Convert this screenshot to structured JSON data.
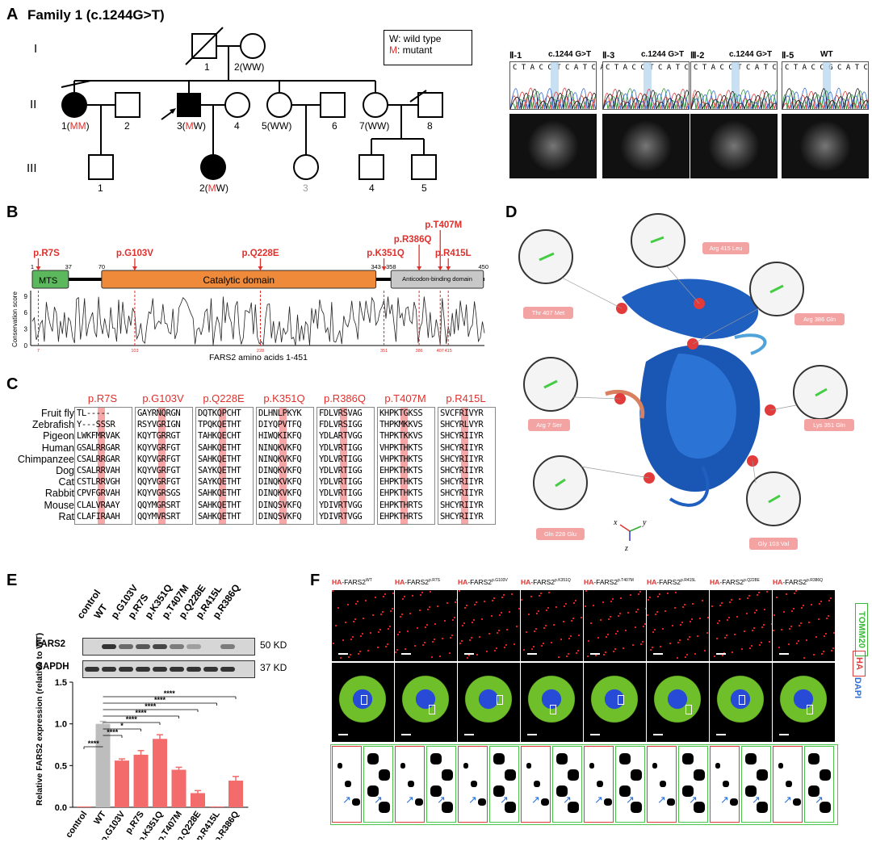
{
  "panelA": {
    "letter": "A",
    "title": "Family 1 (c.1244G>T)",
    "legend_w": "W: wild type",
    "legend_m_prefix": "M",
    "legend_m_suffix": ": mutant",
    "gens": [
      "I",
      "II",
      "III"
    ],
    "labels": {
      "I1": "1",
      "I2": "2(WW)",
      "II1_num": "1(",
      "II1_mm": "MM",
      "II1_close": ")",
      "II2": "2",
      "II3_num": "3(",
      "II3_m": "M",
      "II3_w": "W)",
      "II4": "4",
      "II5": "5(WW)",
      "II6": "6",
      "II7": "7(WW)",
      "II8": "8",
      "III1": "1",
      "III2_num": "2(",
      "III2_m": "M",
      "III2_w": "W)",
      "III3": "3",
      "III4": "4",
      "III5": "5"
    },
    "seq_panels": [
      {
        "id": "Ⅱ-1",
        "label": "c.1244 G>T",
        "seq": "C T A C C T C A T C A"
      },
      {
        "id": "Ⅱ-3",
        "label": "c.1244 G>T",
        "seq": "C T A C C T C A T C A"
      },
      {
        "id": "Ⅲ-2",
        "label": "c.1244 G>T",
        "seq": "C T A C C T C A T C A"
      },
      {
        "id": "Ⅱ-5",
        "label": "WT",
        "seq": "C T A C C G C A T C A"
      }
    ]
  },
  "panelB": {
    "letter": "B",
    "mutations": [
      "p.R7S",
      "p.G103V",
      "p.Q228E",
      "p.K351Q",
      "p.R386Q",
      "p.T407M",
      "p.R415L"
    ],
    "positions": [
      "1",
      "37",
      "70",
      "343",
      "358",
      "450"
    ],
    "domains": {
      "mts": "MTS",
      "catalytic": "Catalytic domain",
      "anticodon": "Anticodon-binding domain"
    },
    "ylabel": "Conservation score",
    "yticks": [
      "9",
      "6",
      "3",
      "0"
    ],
    "xlabel": "FARS2 amino acids 1-451",
    "xticks": [
      "7",
      "103",
      "228",
      "351",
      "386",
      "407",
      "415"
    ]
  },
  "panelC": {
    "letter": "C",
    "species": [
      "Fruit fly",
      "Zebrafish",
      "Pigeon",
      "Human",
      "Chimpanzee",
      "Dog",
      "Cat",
      "Rabbit",
      "Mouse",
      "Rat"
    ],
    "columns": [
      {
        "title": "p.R7S",
        "rows": [
          "TL-----",
          "Y---SSSR",
          "LWKFMRVAK",
          "GSALRRGAR",
          "CSALRRGAR",
          "CSALRRVAH",
          "CSTLRRVGH",
          "CPVFGRVAH",
          "CLALVRAAY",
          "CLAFIRAAH"
        ]
      },
      {
        "title": "p.G103V",
        "rows": [
          "GAYRNQRGN",
          "RSYVGRIGN",
          "KQYTGRRGT",
          "KQYVGRFGT",
          "KQYVGRFGT",
          "KQYVGRFGT",
          "QQYVGRFGT",
          "KQYVGRSGS",
          "QQYMGRSRT",
          "QQYMVRSRT"
        ]
      },
      {
        "title": "p.Q228E",
        "rows": [
          "DQTKQPCHT",
          "TPQKQETHT",
          "TAHKQECHT",
          "SAHKQETHT",
          "SAHKQETHT",
          "SAYKQETHT",
          "SAYKQETHT",
          "SAHKQETHT",
          "SAHKQETHT",
          "SAHKQETHT"
        ]
      },
      {
        "title": "p.K351Q",
        "rows": [
          "DLHNLPKYK",
          "DIYQPVTFQ",
          "HIWQKIKFQ",
          "NINQKVKFQ",
          "NINQKVKFQ",
          "DINQKVKFQ",
          "DINQKVKFQ",
          "DINQKVKFQ",
          "DINQSVKFQ",
          "DINQSVKFQ"
        ]
      },
      {
        "title": "p.R386Q",
        "rows": [
          "FDLVRSVAG",
          "FDLVRSIGG",
          "YDLARTVGG",
          "YDLVRTIGG",
          "YDLVRTIGG",
          "YDLVRTIGG",
          "YDLVRTIGG",
          "YDLVRTIGG",
          "YDIVRTVGG",
          "YDIVRTVGG"
        ]
      },
      {
        "title": "p.T407M",
        "rows": [
          "KHPKTGKSS",
          "THPKMKKVS",
          "THPKTKKVS",
          "VHPKTHKTS",
          "VHPKTHKTS",
          "EHPKTHKTS",
          "EHPKTHKTS",
          "EHPKTHKTS",
          "EHPKTHRTS",
          "EHPKTHRTS"
        ]
      },
      {
        "title": "p.R415L",
        "rows": [
          "SVCFRIVYR",
          "SHCYRLVYR",
          "SHCYRIIYR",
          "SHCYRIIYR",
          "SHCYRIIYR",
          "SHCYRIIYR",
          "SHCYRIIYR",
          "SHCYRIIYR",
          "SHCYRIIYR",
          "SHCYRIIYR"
        ]
      }
    ]
  },
  "panelD": {
    "letter": "D",
    "labels": [
      "Arg 415 Leu",
      "Thr 407 Met",
      "Arg 386 Gln",
      "Arg 7 Ser",
      "Lys 351 Gln",
      "Gln 228 Glu",
      "Gly 103 Val"
    ],
    "axes": [
      "x",
      "y",
      "z"
    ]
  },
  "panelE": {
    "letter": "E",
    "lanes": [
      "control",
      "WT",
      "p.G103V",
      "p.R7S",
      "p.K351Q",
      "p.T407M",
      "p.Q228E",
      "p.R415L",
      "p.R386Q"
    ],
    "blot_rows": [
      {
        "name": "FARS2",
        "size": "50 KD"
      },
      {
        "name": "GAPDH",
        "size": "37 KD"
      }
    ],
    "stars": [
      "****",
      "****",
      "****",
      "****",
      "****",
      "*",
      "****",
      "****"
    ],
    "colors": {
      "wt": "#bdbdbd",
      "mut": "#f36b6b"
    }
  },
  "chart_data": {
    "type": "bar",
    "categories": [
      "control",
      "WT",
      "p.G103V",
      "p.R7S",
      "p.K351Q",
      "p.T407M",
      "p.Q228E",
      "p.R415L",
      "p.R386Q"
    ],
    "values": [
      0.01,
      1.0,
      0.56,
      0.63,
      0.82,
      0.45,
      0.17,
      0.01,
      0.32
    ],
    "errors": [
      0.0,
      0.03,
      0.02,
      0.05,
      0.05,
      0.03,
      0.03,
      0.0,
      0.05
    ],
    "ylabel": "Relative FARS2 expression (relative to WT)",
    "ylim": [
      0,
      1.5
    ],
    "yticks": [
      "0.0",
      "0.5",
      "1.0",
      "1.5"
    ]
  },
  "panelF": {
    "letter": "F",
    "headers": [
      {
        "tag": "HA",
        "rest": "-FARS2",
        "sup": "WT"
      },
      {
        "tag": "HA",
        "rest": "-FARS2",
        "sup": "p.R7S"
      },
      {
        "tag": "HA",
        "rest": "-FARS2",
        "sup": "p.G103V"
      },
      {
        "tag": "HA",
        "rest": "-FARS2",
        "sup": "p.K351Q"
      },
      {
        "tag": "HA",
        "rest": "-FARS2",
        "sup": "p.T407M"
      },
      {
        "tag": "HA",
        "rest": "-FARS2",
        "sup": "p.R415L"
      },
      {
        "tag": "HA",
        "rest": "-FARS2",
        "sup": "p.Q228E"
      },
      {
        "tag": "HA",
        "rest": "-FARS2",
        "sup": "p.R386Q"
      }
    ],
    "side_labels": {
      "tomm20": "TOMM20",
      "ha": "HA",
      "dapi": "DAPI"
    }
  }
}
